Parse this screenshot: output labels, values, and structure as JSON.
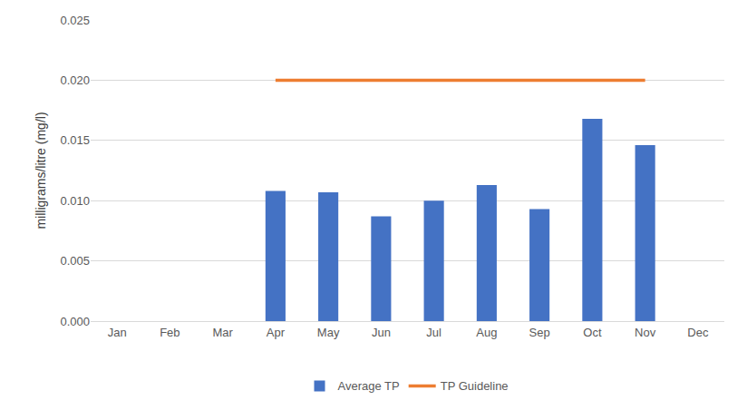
{
  "chart_data": {
    "type": "bar",
    "y_label": "milligrams/litre (mg/l)",
    "categories": [
      "Jan",
      "Feb",
      "Mar",
      "Apr",
      "May",
      "Jun",
      "Jul",
      "Aug",
      "Sep",
      "Oct",
      "Nov",
      "Dec"
    ],
    "series": [
      {
        "name": "Average TP",
        "type": "bar",
        "color": "#4472c4",
        "values": [
          null,
          null,
          null,
          0.0108,
          0.0107,
          0.0087,
          0.01,
          0.0113,
          0.0093,
          0.0168,
          0.0146,
          null
        ]
      },
      {
        "name": "TP Guideline",
        "type": "line",
        "color": "#ed7d31",
        "values": [
          null,
          null,
          null,
          0.02,
          0.02,
          0.02,
          0.02,
          0.02,
          0.02,
          0.02,
          0.02,
          null
        ]
      }
    ],
    "ylim": [
      0,
      0.025
    ],
    "yticks": [
      {
        "value": 0,
        "label": "0.000"
      },
      {
        "value": 0.005,
        "label": "0.005"
      },
      {
        "value": 0.01,
        "label": "0.010"
      },
      {
        "value": 0.015,
        "label": "0.015"
      },
      {
        "value": 0.02,
        "label": "0.020"
      },
      {
        "value": 0.025,
        "label": "0.025"
      }
    ],
    "grid": true,
    "legend": "bottom"
  }
}
